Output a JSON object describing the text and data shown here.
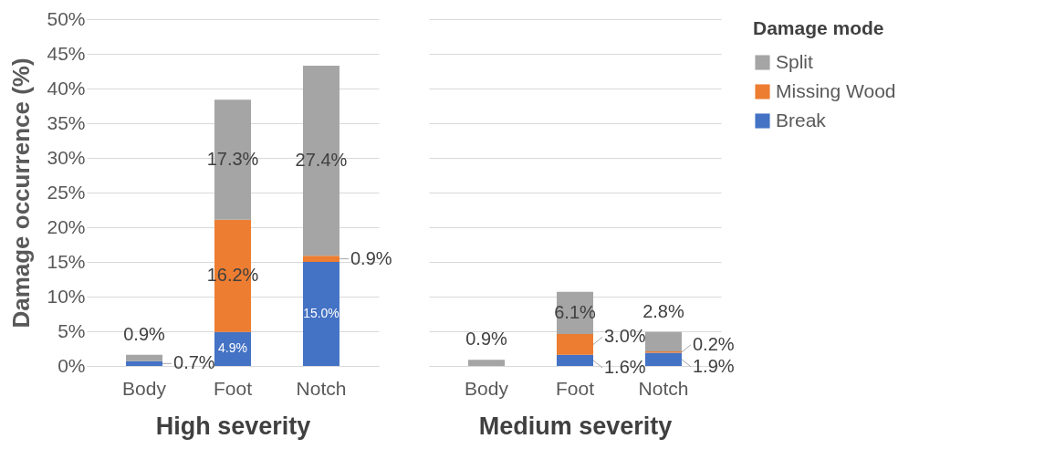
{
  "chart_data": [
    {
      "type": "bar",
      "stacked": true,
      "categories": [
        "Body",
        "Foot",
        "Notch"
      ],
      "xlabel": "High severity",
      "ylabel": "Damage occurrence (%)",
      "legend": "right",
      "legend_title": "Damage mode",
      "ylim": [
        0,
        50
      ],
      "yticks": [
        {
          "value": 0,
          "label": "0%"
        },
        {
          "value": 5,
          "label": "5%"
        },
        {
          "value": 10,
          "label": "10%"
        },
        {
          "value": 15,
          "label": "15%"
        },
        {
          "value": 20,
          "label": "20%"
        },
        {
          "value": 25,
          "label": "25%"
        },
        {
          "value": 30,
          "label": "30%"
        },
        {
          "value": 35,
          "label": "35%"
        },
        {
          "value": 40,
          "label": "40%"
        },
        {
          "value": 45,
          "label": "45%"
        },
        {
          "value": 50,
          "label": "50%"
        }
      ],
      "grid": "y",
      "series": [
        {
          "name": "Break",
          "color": "#4472c4",
          "values": [
            0.7,
            4.9,
            15.0
          ],
          "value_labels": [
            "0.7%",
            "4.9%",
            "15.0%"
          ]
        },
        {
          "name": "Missing Wood",
          "color": "#ed7d31",
          "values": [
            0,
            16.2,
            0.9
          ],
          "value_labels": [
            null,
            "16.2%",
            "0.9%"
          ]
        },
        {
          "name": "Split",
          "color": "#a5a5a5",
          "values": [
            0.9,
            17.3,
            27.4
          ],
          "value_labels": [
            "0.9%",
            "17.3%",
            "27.4%"
          ]
        }
      ]
    },
    {
      "type": "bar",
      "stacked": true,
      "categories": [
        "Body",
        "Foot",
        "Notch"
      ],
      "xlabel": "Medium severity",
      "ylim": [
        0,
        50
      ],
      "yticks": [
        {
          "value": 0,
          "label": null
        },
        {
          "value": 5,
          "label": null
        },
        {
          "value": 10,
          "label": null
        },
        {
          "value": 15,
          "label": null
        },
        {
          "value": 20,
          "label": null
        },
        {
          "value": 25,
          "label": null
        },
        {
          "value": 30,
          "label": null
        },
        {
          "value": 35,
          "label": null
        },
        {
          "value": 40,
          "label": null
        },
        {
          "value": 45,
          "label": null
        },
        {
          "value": 50,
          "label": null
        }
      ],
      "grid": "y",
      "tick_labels": "x",
      "series": [
        {
          "name": "Break",
          "color": "#4472c4",
          "values": [
            0,
            1.6,
            1.9
          ],
          "value_labels": [
            null,
            "1.6%",
            "1.9%"
          ]
        },
        {
          "name": "Missing Wood",
          "color": "#ed7d31",
          "values": [
            0,
            3.0,
            0.2
          ],
          "value_labels": [
            null,
            "3.0%",
            "0.2%"
          ]
        },
        {
          "name": "Split",
          "color": "#a5a5a5",
          "values": [
            0.9,
            6.1,
            2.8
          ],
          "value_labels": [
            "0.9%",
            "6.1%",
            "2.8%"
          ]
        }
      ]
    }
  ]
}
